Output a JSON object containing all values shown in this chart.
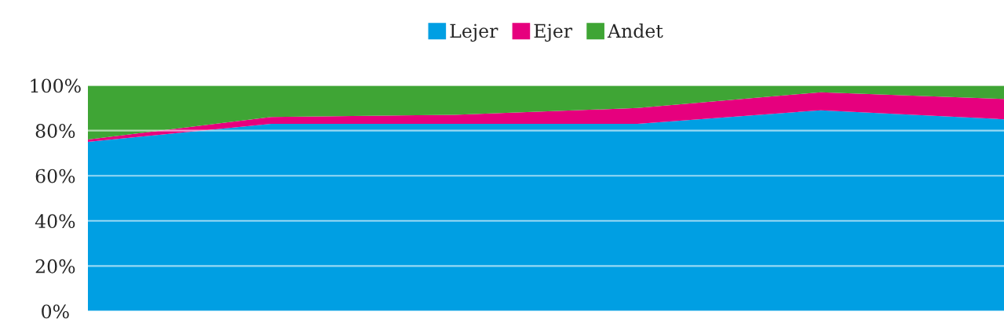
{
  "chart_data": {
    "type": "area",
    "stacked": true,
    "categories": [
      null,
      null,
      null,
      null,
      null,
      null
    ],
    "series": [
      {
        "name": "Lejer",
        "color": "#009fe3",
        "values": [
          75,
          83,
          83,
          83,
          89,
          85
        ]
      },
      {
        "name": "Ejer",
        "color": "#e6007e",
        "values": [
          1,
          3,
          4,
          7,
          8,
          9
        ]
      },
      {
        "name": "Andet",
        "color": "#3fa535",
        "values": [
          24,
          14,
          13,
          10,
          3,
          6
        ]
      }
    ],
    "ylim": [
      0,
      100
    ],
    "yticks": [
      {
        "value": 0,
        "label": "0%"
      },
      {
        "value": 20,
        "label": "20%"
      },
      {
        "value": 40,
        "label": "40%"
      },
      {
        "value": 60,
        "label": "60%"
      },
      {
        "value": 80,
        "label": "80%"
      },
      {
        "value": 100,
        "label": "100%"
      }
    ],
    "grid": "y",
    "legend": "top"
  }
}
